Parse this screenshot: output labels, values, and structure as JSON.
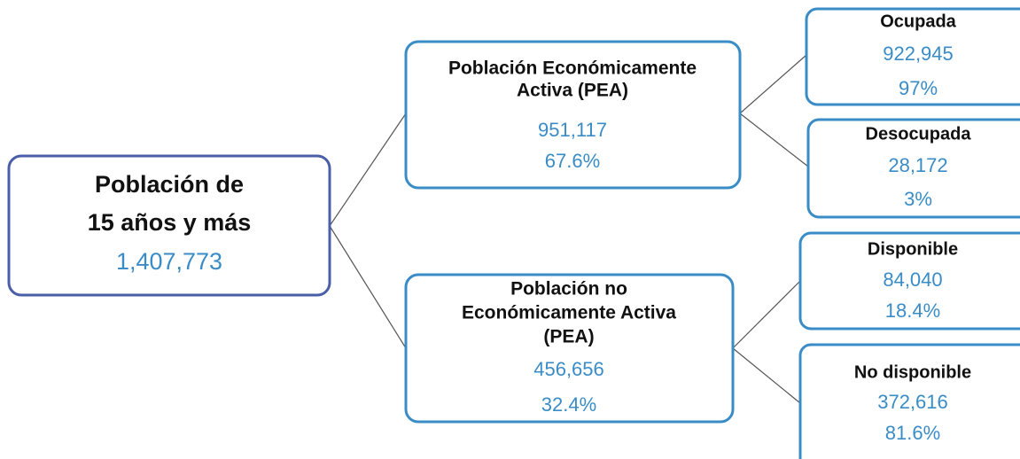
{
  "nodes": [
    {
      "title": [
        "Población de",
        "15 años y más"
      ],
      "value": "1,407,773"
    },
    {
      "title": [
        "Población Económicamente",
        "Activa (PEA)"
      ],
      "value": "951,117",
      "percent": "67.6%"
    },
    {
      "title": [
        "Población no",
        "Económicamente Activa",
        "(PEA)"
      ],
      "value": "456,656",
      "percent": "32.4%"
    },
    {
      "title": [
        "Ocupada"
      ],
      "value": "922,945",
      "percent": "97%"
    },
    {
      "title": [
        "Desocupada"
      ],
      "value": "28,172",
      "percent": "3%"
    },
    {
      "title": [
        "Disponible"
      ],
      "value": "84,040",
      "percent": "18.4%"
    },
    {
      "title": [
        "No disponible"
      ],
      "value": "372,616",
      "percent": "81.6%"
    }
  ]
}
